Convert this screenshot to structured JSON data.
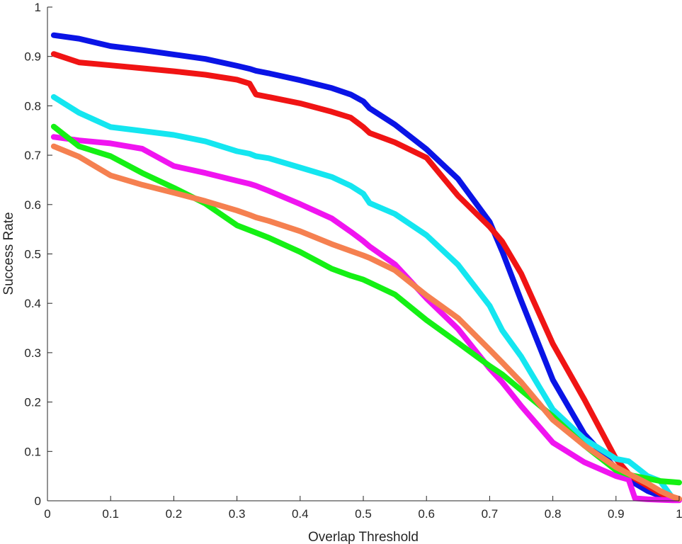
{
  "chart_data": {
    "type": "line",
    "title": "",
    "xlabel": "Overlap Threshold",
    "ylabel": "Success Rate",
    "xlim": [
      0,
      1
    ],
    "ylim": [
      0,
      1
    ],
    "grid": false,
    "legend": "none",
    "x_ticks": [
      "0",
      "0.1",
      "0.2",
      "0.3",
      "0.4",
      "0.5",
      "0.6",
      "0.7",
      "0.8",
      "0.9",
      "1"
    ],
    "y_ticks": [
      "0",
      "0.1",
      "0.2",
      "0.3",
      "0.4",
      "0.5",
      "0.6",
      "0.7",
      "0.8",
      "0.9",
      "1"
    ],
    "x": [
      0.01,
      0.05,
      0.1,
      0.15,
      0.2,
      0.25,
      0.3,
      0.32,
      0.33,
      0.35,
      0.4,
      0.45,
      0.48,
      0.5,
      0.51,
      0.55,
      0.6,
      0.65,
      0.7,
      0.72,
      0.75,
      0.8,
      0.85,
      0.9,
      0.92,
      0.93,
      0.95,
      0.97,
      0.99,
      1.0
    ],
    "series": [
      {
        "color": "#0a14e6",
        "values": [
          0.943,
          0.936,
          0.921,
          0.913,
          0.904,
          0.895,
          0.881,
          0.875,
          0.871,
          0.866,
          0.852,
          0.836,
          0.823,
          0.809,
          0.795,
          0.762,
          0.712,
          0.652,
          0.565,
          0.505,
          0.405,
          0.245,
          0.135,
          0.065,
          0.045,
          0.035,
          0.02,
          0.01,
          0.005,
          0.003
        ]
      },
      {
        "color": "#f01414",
        "values": [
          0.905,
          0.888,
          0.882,
          0.876,
          0.87,
          0.863,
          0.853,
          0.845,
          0.823,
          0.818,
          0.805,
          0.788,
          0.776,
          0.757,
          0.745,
          0.726,
          0.695,
          0.618,
          0.555,
          0.525,
          0.46,
          0.318,
          0.205,
          0.085,
          0.055,
          0.045,
          0.03,
          0.015,
          0.005,
          0.002
        ]
      },
      {
        "color": "#14e6f0",
        "values": [
          0.818,
          0.786,
          0.757,
          0.749,
          0.741,
          0.728,
          0.708,
          0.703,
          0.698,
          0.694,
          0.675,
          0.656,
          0.638,
          0.622,
          0.603,
          0.581,
          0.538,
          0.478,
          0.395,
          0.345,
          0.292,
          0.185,
          0.125,
          0.085,
          0.08,
          0.07,
          0.05,
          0.04,
          0.005,
          0.003
        ]
      },
      {
        "color": "#f014f0",
        "values": [
          0.737,
          0.73,
          0.724,
          0.713,
          0.678,
          0.664,
          0.648,
          0.642,
          0.638,
          0.628,
          0.601,
          0.572,
          0.545,
          0.526,
          0.515,
          0.479,
          0.41,
          0.348,
          0.268,
          0.24,
          0.192,
          0.118,
          0.078,
          0.05,
          0.043,
          0.005,
          0.003,
          0.002,
          0.001,
          0.001
        ]
      },
      {
        "color": "#14f014",
        "values": [
          0.758,
          0.718,
          0.698,
          0.664,
          0.634,
          0.602,
          0.558,
          0.548,
          0.543,
          0.533,
          0.504,
          0.47,
          0.456,
          0.448,
          0.442,
          0.418,
          0.366,
          0.32,
          0.273,
          0.256,
          0.224,
          0.171,
          0.112,
          0.062,
          0.053,
          0.05,
          0.045,
          0.04,
          0.038,
          0.037
        ]
      },
      {
        "color": "#f58050",
        "values": [
          0.718,
          0.697,
          0.659,
          0.64,
          0.624,
          0.607,
          0.588,
          0.579,
          0.574,
          0.567,
          0.546,
          0.52,
          0.506,
          0.497,
          0.492,
          0.467,
          0.416,
          0.37,
          0.306,
          0.28,
          0.24,
          0.164,
          0.112,
          0.068,
          0.055,
          0.048,
          0.035,
          0.02,
          0.008,
          0.004
        ]
      }
    ]
  }
}
